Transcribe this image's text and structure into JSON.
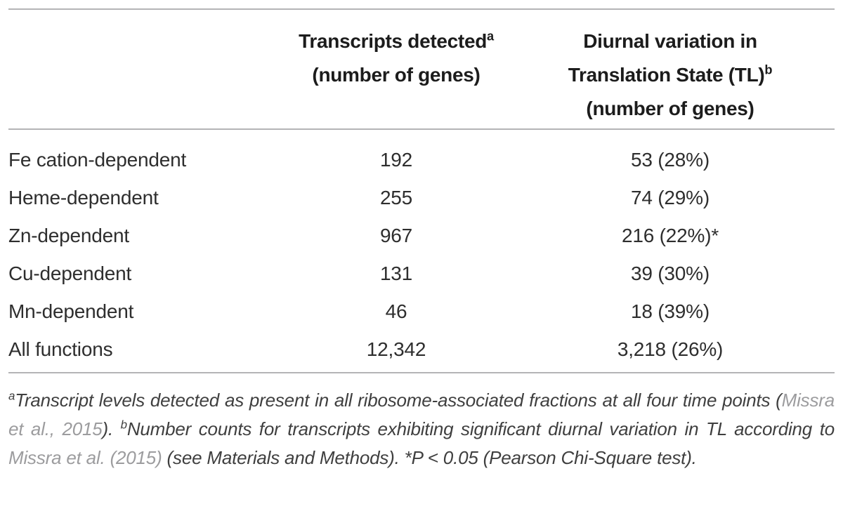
{
  "table": {
    "header": {
      "col2": {
        "line1": "Transcripts detected",
        "sup": "a",
        "line2": "(number of genes)"
      },
      "col3": {
        "line1": "Diurnal variation in",
        "line2": "Translation State (TL)",
        "sup": "b",
        "line3": "(number of genes)"
      }
    },
    "rows": [
      {
        "label": "Fe cation-dependent",
        "transcripts": "192",
        "diurnal": "53 (28%)"
      },
      {
        "label": "Heme-dependent",
        "transcripts": "255",
        "diurnal": "74 (29%)"
      },
      {
        "label": "Zn-dependent",
        "transcripts": "967",
        "diurnal": "216 (22%)*"
      },
      {
        "label": "Cu-dependent",
        "transcripts": "131",
        "diurnal": "39 (30%)"
      },
      {
        "label": "Mn-dependent",
        "transcripts": "46",
        "diurnal": "18 (39%)"
      },
      {
        "label": "All functions",
        "transcripts": "12,342",
        "diurnal": "3,218 (26%)"
      }
    ]
  },
  "footnote": {
    "sup_a": "a",
    "part1": "Transcript levels detected as present in all ribosome-associated fractions at all four time points (",
    "cite1": "Missra et al., 2015",
    "part2": "). ",
    "sup_b": "b",
    "part3": "Number counts for transcripts exhibiting significant diurnal variation in TL according to ",
    "cite2": "Missra et al. (2015)",
    "part4": " (see Materials and Methods). *P < 0.05 (Pearson Chi-Square test)."
  },
  "colors": {
    "rule": "#b4b4b6",
    "header_text": "#1c1c1c",
    "body_text": "#2e2e2e",
    "footnote_text": "#3f3f3f",
    "citation": "#9c9c9e",
    "background": "#ffffff"
  }
}
